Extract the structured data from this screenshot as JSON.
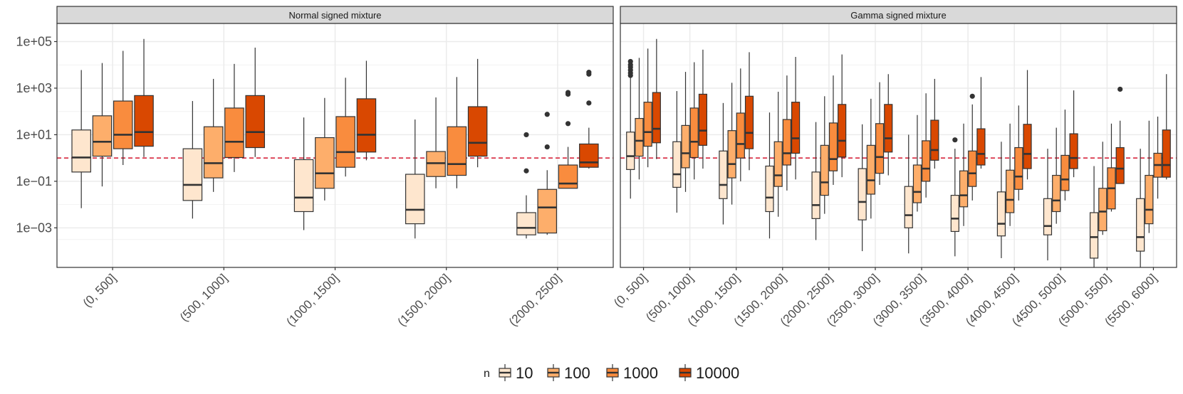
{
  "chart_data": {
    "type": "boxplot",
    "y_scale": "log10",
    "ylim": [
      2e-05,
      600000
    ],
    "y_ticks": [
      {
        "value": 0.001,
        "label": "1e−03"
      },
      {
        "value": 0.1,
        "label": "1e−01"
      },
      {
        "value": 10,
        "label": "1e+01"
      },
      {
        "value": 1000,
        "label": "1e+03"
      },
      {
        "value": 100000,
        "label": "1e+05"
      }
    ],
    "reference_line": {
      "value": 1,
      "color": "#d7263d",
      "style": "dashed"
    },
    "legend": {
      "title": "n",
      "entries": [
        {
          "label": "10",
          "color": "#fee6ce"
        },
        {
          "label": "100",
          "color": "#fdae6b"
        },
        {
          "label": "1000",
          "color": "#f98c3e"
        },
        {
          "label": "10000",
          "color": "#d94801"
        }
      ]
    },
    "panels": [
      {
        "title": "Normal signed mixture",
        "categories": [
          "(0, 500]",
          "(500, 1000]",
          "(1000, 1500]",
          "(1500, 2000]",
          "(2000, 2500]"
        ],
        "groups": [
          [
            {
              "min": 0.007,
              "q1": 0.25,
              "med": 1.05,
              "q3": 16,
              "max": 6000,
              "out": []
            },
            {
              "min": 0.06,
              "q1": 1.2,
              "med": 5,
              "q3": 65,
              "max": 12000,
              "out": []
            },
            {
              "min": 0.5,
              "q1": 2.5,
              "med": 10,
              "q3": 280,
              "max": 40000,
              "out": []
            },
            {
              "min": 1.1,
              "q1": 3.2,
              "med": 13,
              "q3": 480,
              "max": 130000,
              "out": []
            }
          ],
          [
            {
              "min": 0.0025,
              "q1": 0.015,
              "med": 0.07,
              "q3": 2.5,
              "max": 280,
              "out": []
            },
            {
              "min": 0.035,
              "q1": 0.14,
              "med": 0.6,
              "q3": 22,
              "max": 2500,
              "out": []
            },
            {
              "min": 0.25,
              "q1": 1.05,
              "med": 5,
              "q3": 140,
              "max": 11000,
              "out": []
            },
            {
              "min": 1.1,
              "q1": 2.8,
              "med": 13,
              "q3": 480,
              "max": 55000,
              "out": []
            }
          ],
          [
            {
              "min": 0.0008,
              "q1": 0.005,
              "med": 0.02,
              "q3": 0.85,
              "max": 55,
              "out": []
            },
            {
              "min": 0.015,
              "q1": 0.05,
              "med": 0.22,
              "q3": 7.5,
              "max": 380,
              "out": []
            },
            {
              "min": 0.16,
              "q1": 0.4,
              "med": 1.8,
              "q3": 60,
              "max": 2800,
              "out": []
            },
            {
              "min": 0.8,
              "q1": 1.8,
              "med": 10,
              "q3": 350,
              "max": 15000,
              "out": []
            }
          ],
          [
            {
              "min": 0.00035,
              "q1": 0.0015,
              "med": 0.006,
              "q3": 0.2,
              "max": 45,
              "out": []
            },
            {
              "min": 0.05,
              "q1": 0.16,
              "med": 0.6,
              "q3": 1.9,
              "max": 400,
              "out": []
            },
            {
              "min": 0.05,
              "q1": 0.18,
              "med": 0.55,
              "q3": 22,
              "max": 3000,
              "out": []
            },
            {
              "min": 0.4,
              "q1": 1.2,
              "med": 4.5,
              "q3": 160,
              "max": 18000,
              "out": []
            }
          ],
          [
            {
              "min": 0.00035,
              "q1": 0.0005,
              "med": 0.001,
              "q3": 0.0045,
              "max": 0.025,
              "out": [
                0.28,
                10
              ]
            },
            {
              "min": 0.0005,
              "q1": 0.0006,
              "med": 0.0075,
              "q3": 0.045,
              "max": 0.3,
              "out": [
                3,
                75
              ]
            },
            {
              "min": 0.05,
              "q1": 0.05,
              "med": 0.08,
              "q3": 0.5,
              "max": 3,
              "out": [
                30,
                550,
                650
              ]
            },
            {
              "min": 0.35,
              "q1": 0.4,
              "med": 0.65,
              "q3": 4,
              "max": 20,
              "out": [
                230,
                4000,
                4800
              ]
            }
          ]
        ]
      },
      {
        "title": "Gamma signed mixture",
        "categories": [
          "(0, 500]",
          "(500, 1000]",
          "(1000, 1500]",
          "(1500, 2000]",
          "(2000, 2500]",
          "(2500, 3000]",
          "(3000, 3500]",
          "(3500, 4000]",
          "(4000, 4500]",
          "(4500, 5000]",
          "(5000, 5500]",
          "(5500, 6000]"
        ],
        "groups": [
          [
            {
              "min": 0.018,
              "q1": 0.32,
              "med": 1.2,
              "q3": 13,
              "max": 5000,
              "out": [
                3500,
                4500,
                6000,
                8000,
                10000,
                14000
              ]
            },
            {
              "min": 0.12,
              "q1": 1.2,
              "med": 5.5,
              "q3": 50,
              "max": 20000,
              "out": []
            },
            {
              "min": 0.4,
              "q1": 3.2,
              "med": 13,
              "q3": 250,
              "max": 50000,
              "out": []
            },
            {
              "min": 0.9,
              "q1": 4.5,
              "med": 18,
              "q3": 650,
              "max": 130000,
              "out": []
            }
          ],
          [
            {
              "min": 0.0045,
              "q1": 0.055,
              "med": 0.2,
              "q3": 5,
              "max": 750,
              "out": []
            },
            {
              "min": 0.035,
              "q1": 0.38,
              "med": 1.6,
              "q3": 25,
              "max": 5000,
              "out": []
            },
            {
              "min": 0.12,
              "q1": 1.05,
              "med": 5,
              "q3": 140,
              "max": 13000,
              "out": []
            },
            {
              "min": 0.35,
              "q1": 3.5,
              "med": 15,
              "q3": 550,
              "max": 45000,
              "out": []
            }
          ],
          [
            {
              "min": 0.0014,
              "q1": 0.018,
              "med": 0.07,
              "q3": 2,
              "max": 230,
              "out": []
            },
            {
              "min": 0.01,
              "q1": 0.14,
              "med": 0.55,
              "q3": 15,
              "max": 1700,
              "out": []
            },
            {
              "min": 0.1,
              "q1": 1,
              "med": 4,
              "q3": 85,
              "max": 7000,
              "out": []
            },
            {
              "min": 0.3,
              "q1": 2.5,
              "med": 12,
              "q3": 450,
              "max": 35000,
              "out": []
            }
          ],
          [
            {
              "min": 0.00035,
              "q1": 0.005,
              "med": 0.02,
              "q3": 0.45,
              "max": 90,
              "out": []
            },
            {
              "min": 0.003,
              "q1": 0.06,
              "med": 0.18,
              "q3": 5,
              "max": 700,
              "out": []
            },
            {
              "min": 0.04,
              "q1": 0.5,
              "med": 1.6,
              "q3": 45,
              "max": 3500,
              "out": []
            },
            {
              "min": 0.12,
              "q1": 1.6,
              "med": 7,
              "q3": 250,
              "max": 22000,
              "out": []
            }
          ],
          [
            {
              "min": 0.0003,
              "q1": 0.0025,
              "med": 0.0095,
              "q3": 0.25,
              "max": 35,
              "out": []
            },
            {
              "min": 0.004,
              "q1": 0.025,
              "med": 0.09,
              "q3": 3.5,
              "max": 450,
              "out": []
            },
            {
              "min": 0.07,
              "q1": 0.28,
              "med": 0.9,
              "q3": 32,
              "max": 3500,
              "out": []
            },
            {
              "min": 0.15,
              "q1": 1.1,
              "med": 5.5,
              "q3": 200,
              "max": 28000,
              "out": []
            }
          ],
          [
            {
              "min": 0.0001,
              "q1": 0.0022,
              "med": 0.013,
              "q3": 0.35,
              "max": 28,
              "out": []
            },
            {
              "min": 0.0025,
              "q1": 0.028,
              "med": 0.11,
              "q3": 3.5,
              "max": 350,
              "out": []
            },
            {
              "min": 0.07,
              "q1": 0.22,
              "med": 1.1,
              "q3": 30,
              "max": 1800,
              "out": []
            },
            {
              "min": 0.18,
              "q1": 1.8,
              "med": 7,
              "q3": 200,
              "max": 4000,
              "out": []
            }
          ],
          [
            {
              "min": 8e-05,
              "q1": 0.001,
              "med": 0.0035,
              "q3": 0.06,
              "max": 10,
              "out": []
            },
            {
              "min": 0.005,
              "q1": 0.012,
              "med": 0.035,
              "q3": 0.5,
              "max": 70,
              "out": []
            },
            {
              "min": 0.02,
              "q1": 0.1,
              "med": 0.35,
              "q3": 5.5,
              "max": 600,
              "out": []
            },
            {
              "min": 0.35,
              "q1": 0.8,
              "med": 2.2,
              "q3": 42,
              "max": 2500,
              "out": []
            }
          ],
          [
            {
              "min": 6e-05,
              "q1": 0.0007,
              "med": 0.0025,
              "q3": 0.025,
              "max": 2.5,
              "out": [
                6
              ]
            },
            {
              "min": 0.0012,
              "q1": 0.008,
              "med": 0.025,
              "q3": 0.28,
              "max": 30,
              "out": []
            },
            {
              "min": 0.015,
              "q1": 0.06,
              "med": 0.22,
              "q3": 2,
              "max": 200,
              "out": [
                450
              ]
            },
            {
              "min": 0.35,
              "q1": 0.5,
              "med": 1.5,
              "q3": 18,
              "max": 3000,
              "out": []
            }
          ],
          [
            {
              "min": 5e-05,
              "q1": 0.00045,
              "med": 0.0015,
              "q3": 0.035,
              "max": 5,
              "out": []
            },
            {
              "min": 0.0012,
              "q1": 0.0045,
              "med": 0.016,
              "q3": 0.3,
              "max": 30,
              "out": []
            },
            {
              "min": 0.015,
              "q1": 0.045,
              "med": 0.16,
              "q3": 2.8,
              "max": 180,
              "out": []
            },
            {
              "min": 0.12,
              "q1": 0.35,
              "med": 1.5,
              "q3": 28,
              "max": 6000,
              "out": []
            }
          ],
          [
            {
              "min": 4e-05,
              "q1": 0.0005,
              "med": 0.0012,
              "q3": 0.018,
              "max": 2.5,
              "out": []
            },
            {
              "min": 0.0015,
              "q1": 0.005,
              "med": 0.015,
              "q3": 0.18,
              "max": 20,
              "out": []
            },
            {
              "min": 0.015,
              "q1": 0.04,
              "med": 0.12,
              "q3": 1.3,
              "max": 120,
              "out": []
            },
            {
              "min": 0.15,
              "q1": 0.35,
              "med": 1,
              "q3": 11,
              "max": 800,
              "out": []
            }
          ],
          [
            {
              "min": 2e-05,
              "q1": 5e-05,
              "med": 0.0004,
              "q3": 0.0045,
              "max": 0.45,
              "out": []
            },
            {
              "min": 0.0005,
              "q1": 0.00075,
              "med": 0.005,
              "q3": 0.05,
              "max": 5,
              "out": []
            },
            {
              "min": 0.005,
              "q1": 0.0065,
              "med": 0.05,
              "q3": 0.38,
              "max": 30,
              "out": []
            },
            {
              "min": 0.08,
              "q1": 0.08,
              "med": 0.35,
              "q3": 2.8,
              "max": 40,
              "out": [
                900
              ]
            }
          ],
          [
            {
              "min": 2e-05,
              "q1": 0.0001,
              "med": 0.0004,
              "q3": 0.018,
              "max": 2.5,
              "out": []
            },
            {
              "min": 0.0006,
              "q1": 0.0015,
              "med": 0.006,
              "q3": 0.18,
              "max": 40,
              "out": []
            },
            {
              "min": 0.018,
              "q1": 0.15,
              "med": 0.5,
              "q3": 1.6,
              "max": 60,
              "out": []
            },
            {
              "min": 0.12,
              "q1": 0.15,
              "med": 0.5,
              "q3": 16,
              "max": 4000,
              "out": []
            }
          ]
        ]
      }
    ]
  }
}
